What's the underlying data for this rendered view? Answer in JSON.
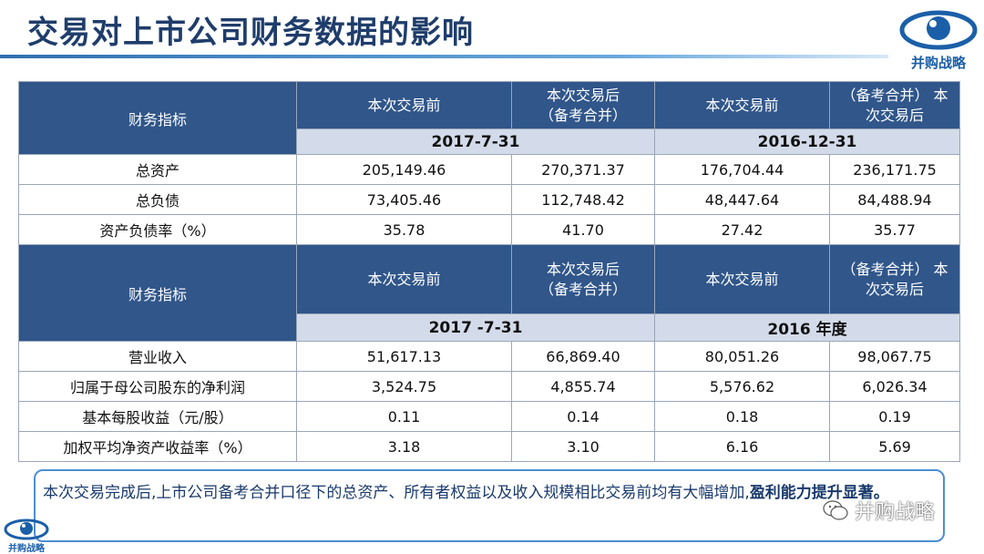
{
  "title": "交易对上市公司财务数据的影响",
  "brand": "并购战略",
  "watermark": "并购战略",
  "colors": {
    "header_bg": "#30568a",
    "date_band_bg": "#d3dbea",
    "title_text": "#1f3d6b",
    "note_border": "#4d8fd0"
  },
  "table1": {
    "header": {
      "indicator": "财务指标",
      "col1": "本次交易前",
      "col2_line1": "本次交易后",
      "col2_line2": "（备考合并）",
      "col3": "本次交易前",
      "col4_line1": "（备考合并） 本",
      "col4_line2": "次交易后"
    },
    "period1": "2017-7-31",
    "period2": "2016-12-31",
    "rows": [
      {
        "label": "总资产",
        "v1": "205,149.46",
        "v2": "270,371.37",
        "v3": "176,704.44",
        "v4": "236,171.75"
      },
      {
        "label": "总负债",
        "v1": "73,405.46",
        "v2": "112,748.42",
        "v3": "48,447.64",
        "v4": "84,488.94"
      },
      {
        "label": "资产负债率（%）",
        "v1": "35.78",
        "v2": "41.70",
        "v3": "27.42",
        "v4": "35.77"
      }
    ]
  },
  "table2": {
    "header": {
      "indicator": "财务指标",
      "col1": "本次交易前",
      "col2_line1": "本次交易后",
      "col2_line2": "（备考合并）",
      "col3": "本次交易前",
      "col4_line1": "（备考合并） 本",
      "col4_line2": "次交易后"
    },
    "period1": "2017 -7-31",
    "period2": "2016 年度",
    "rows": [
      {
        "label": "营业收入",
        "v1": "51,617.13",
        "v2": "66,869.40",
        "v3": "80,051.26",
        "v4": "98,067.75"
      },
      {
        "label": "归属于母公司股东的净利润",
        "v1": "3,524.75",
        "v2": "4,855.74",
        "v3": "5,576.62",
        "v4": "6,026.34"
      },
      {
        "label": "基本每股收益（元/股）",
        "v1": "0.11",
        "v2": "0.14",
        "v3": "0.18",
        "v4": "0.19"
      },
      {
        "label": "加权平均净资产收益率（%）",
        "v1": "3.18",
        "v2": "3.10",
        "v3": "6.16",
        "v4": "5.69"
      }
    ]
  },
  "note": {
    "text": "本次交易完成后,上市公司备考合并口径下的总资产、所有者权益以及收入规模相比交易前均有大幅增加,",
    "emphasis": "盈利能力提升显著。"
  }
}
